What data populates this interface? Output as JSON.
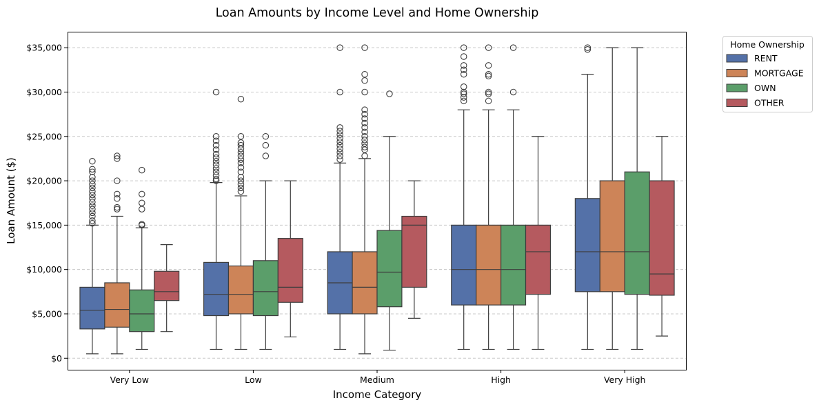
{
  "colors": {
    "RENT": "#5471a8",
    "MORTGAGE": "#cd8458",
    "OWN": "#5b9e6a",
    "OTHER": "#b55a5f",
    "line": "#3d3d3d",
    "grid": "#c8c8c8"
  },
  "chart_data": {
    "type": "box",
    "title": "Loan Amounts by Income Level and Home Ownership",
    "xlabel": "Income Category",
    "ylabel": "Loan Amount ($)",
    "ylim": [
      -1300,
      36800
    ],
    "yticks": [
      0,
      5000,
      10000,
      15000,
      20000,
      25000,
      30000,
      35000
    ],
    "ytick_labels": [
      "$0",
      "$5,000",
      "$10,000",
      "$15,000",
      "$20,000",
      "$25,000",
      "$30,000",
      "$35,000"
    ],
    "grid": "horizontal dashed",
    "legend_title": "Home Ownership",
    "legend_position": "outside top-right",
    "categories": [
      "Very Low",
      "Low",
      "Medium",
      "High",
      "Very High"
    ],
    "series": [
      {
        "name": "RENT",
        "boxes": [
          {
            "whislo": 500,
            "q1": 3300,
            "med": 5400,
            "q3": 8000,
            "whishi": 15000,
            "fliers": [
              15200,
              15500,
              16000,
              16400,
              16800,
              17200,
              17600,
              18000,
              18400,
              18800,
              19200,
              19600,
              20000,
              20400,
              21000,
              21300,
              22200
            ]
          },
          {
            "whislo": 1000,
            "q1": 4800,
            "med": 7200,
            "q3": 10800,
            "whishi": 19800,
            "fliers": [
              20000,
              20200,
              20600,
              21000,
              21400,
              21800,
              22200,
              22600,
              23000,
              23500,
              24000,
              24500,
              25000,
              30000
            ]
          },
          {
            "whislo": 1000,
            "q1": 5000,
            "med": 8500,
            "q3": 12000,
            "whishi": 22000,
            "fliers": [
              22400,
              22800,
              23200,
              23600,
              24000,
              24400,
              24800,
              25200,
              25600,
              26000,
              30000,
              35000
            ]
          },
          {
            "whislo": 1000,
            "q1": 6000,
            "med": 10000,
            "q3": 15000,
            "whishi": 28000,
            "fliers": [
              29000,
              29400,
              29800,
              30000,
              30600,
              32000,
              32500,
              33000,
              34000,
              35000
            ]
          },
          {
            "whislo": 1000,
            "q1": 7500,
            "med": 12000,
            "q3": 18000,
            "whishi": 32000,
            "fliers": [
              34800,
              35000
            ]
          }
        ]
      },
      {
        "name": "MORTGAGE",
        "boxes": [
          {
            "whislo": 500,
            "q1": 3500,
            "med": 5500,
            "q3": 8500,
            "whishi": 16000,
            "fliers": [
              16800,
              17000,
              18000,
              18500,
              20000,
              22500,
              22800
            ]
          },
          {
            "whislo": 1000,
            "q1": 5000,
            "med": 7200,
            "q3": 10400,
            "whishi": 18300,
            "fliers": [
              18800,
              19200,
              19600,
              20000,
              20400,
              21000,
              21500,
              22000,
              22400,
              22800,
              23200,
              23600,
              24000,
              24300,
              25000,
              29200
            ]
          },
          {
            "whislo": 500,
            "q1": 5000,
            "med": 8000,
            "q3": 12000,
            "whishi": 22500,
            "fliers": [
              22800,
              23500,
              23800,
              24200,
              24600,
              25000,
              25500,
              26000,
              26500,
              27000,
              27500,
              28000,
              30000,
              31300,
              32000,
              35000
            ]
          },
          {
            "whislo": 1000,
            "q1": 6000,
            "med": 10000,
            "q3": 15000,
            "whishi": 28000,
            "fliers": [
              29000,
              29800,
              30000,
              31800,
              32000,
              33000,
              35000
            ]
          },
          {
            "whislo": 1000,
            "q1": 7500,
            "med": 12000,
            "q3": 20000,
            "whishi": 35000,
            "fliers": []
          }
        ]
      },
      {
        "name": "OWN",
        "boxes": [
          {
            "whislo": 1000,
            "q1": 3000,
            "med": 5000,
            "q3": 7700,
            "whishi": 14700,
            "fliers": [
              15000,
              15100,
              16800,
              17500,
              18500,
              21200
            ]
          },
          {
            "whislo": 1000,
            "q1": 4800,
            "med": 7500,
            "q3": 11000,
            "whishi": 20000,
            "fliers": [
              22800,
              24000,
              25000
            ]
          },
          {
            "whislo": 900,
            "q1": 5800,
            "med": 9700,
            "q3": 14400,
            "whishi": 25000,
            "fliers": [
              29800
            ]
          },
          {
            "whislo": 1000,
            "q1": 6000,
            "med": 10000,
            "q3": 15000,
            "whishi": 28000,
            "fliers": [
              30000,
              35000
            ]
          },
          {
            "whislo": 1000,
            "q1": 7200,
            "med": 12000,
            "q3": 21000,
            "whishi": 35000,
            "fliers": []
          }
        ]
      },
      {
        "name": "OTHER",
        "boxes": [
          {
            "whislo": 3000,
            "q1": 6500,
            "med": 7500,
            "q3": 9800,
            "whishi": 12800,
            "fliers": []
          },
          {
            "whislo": 2400,
            "q1": 6300,
            "med": 8000,
            "q3": 13500,
            "whishi": 20000,
            "fliers": []
          },
          {
            "whislo": 4500,
            "q1": 8000,
            "med": 15000,
            "q3": 16000,
            "whishi": 20000,
            "fliers": []
          },
          {
            "whislo": 1000,
            "q1": 7200,
            "med": 12000,
            "q3": 15000,
            "whishi": 25000,
            "fliers": []
          },
          {
            "whislo": 2500,
            "q1": 7100,
            "med": 9500,
            "q3": 20000,
            "whishi": 25000,
            "fliers": []
          }
        ]
      }
    ]
  }
}
